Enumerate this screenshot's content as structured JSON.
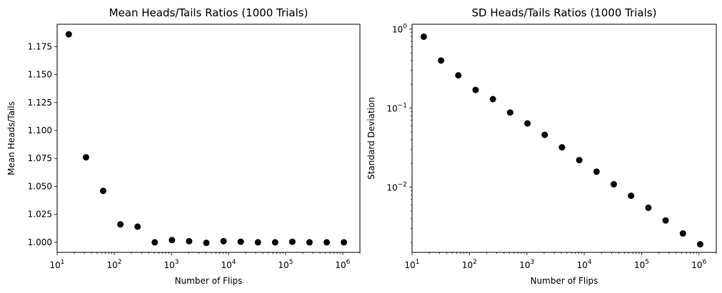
{
  "chart_data": [
    {
      "type": "scatter",
      "title": "Mean Heads/Tails Ratios (1000 Trials)",
      "xlabel": "Number of Flips",
      "ylabel": "Mean Heads/Tails",
      "xscale": "log",
      "yscale": "linear",
      "xlim": [
        10,
        2000000
      ],
      "ylim": [
        0.991,
        1.195
      ],
      "xticks": [
        {
          "value": 10,
          "base": "10",
          "exp": "1"
        },
        {
          "value": 100,
          "base": "10",
          "exp": "2"
        },
        {
          "value": 1000,
          "base": "10",
          "exp": "3"
        },
        {
          "value": 10000,
          "base": "10",
          "exp": "4"
        },
        {
          "value": 100000,
          "base": "10",
          "exp": "5"
        },
        {
          "value": 1000000,
          "base": "10",
          "exp": "6"
        }
      ],
      "yticks": [
        {
          "value": 1.0,
          "label": "1.000"
        },
        {
          "value": 1.025,
          "label": "1.025"
        },
        {
          "value": 1.05,
          "label": "1.050"
        },
        {
          "value": 1.075,
          "label": "1.075"
        },
        {
          "value": 1.1,
          "label": "1.100"
        },
        {
          "value": 1.125,
          "label": "1.125"
        },
        {
          "value": 1.15,
          "label": "1.150"
        },
        {
          "value": 1.175,
          "label": "1.175"
        }
      ],
      "grid": false,
      "marker_color": "#000000",
      "x": [
        16,
        32,
        64,
        128,
        256,
        512,
        1024,
        2048,
        4096,
        8192,
        16384,
        32768,
        65536,
        131072,
        262144,
        524288,
        1048576
      ],
      "y": [
        1.186,
        1.076,
        1.046,
        1.016,
        1.014,
        1.0,
        1.002,
        1.001,
        0.9995,
        1.001,
        1.0005,
        1.0,
        1.0,
        1.0005,
        1.0,
        1.0,
        1.0
      ]
    },
    {
      "type": "scatter",
      "title": "SD Heads/Tails Ratios (1000 Trials)",
      "xlabel": "Number of Flips",
      "ylabel": "Standard Deviation",
      "xscale": "log",
      "yscale": "log",
      "xlim": [
        10,
        2000000
      ],
      "ylim": [
        0.0015,
        1.15
      ],
      "xticks": [
        {
          "value": 10,
          "base": "10",
          "exp": "1"
        },
        {
          "value": 100,
          "base": "10",
          "exp": "2"
        },
        {
          "value": 1000,
          "base": "10",
          "exp": "3"
        },
        {
          "value": 10000,
          "base": "10",
          "exp": "4"
        },
        {
          "value": 100000,
          "base": "10",
          "exp": "5"
        },
        {
          "value": 1000000,
          "base": "10",
          "exp": "6"
        }
      ],
      "yticks": [
        {
          "value": 1,
          "base": "10",
          "exp": "0"
        },
        {
          "value": 0.1,
          "base": "10",
          "exp": "−1"
        },
        {
          "value": 0.01,
          "base": "10",
          "exp": "−2"
        }
      ],
      "grid": false,
      "marker_color": "#000000",
      "x": [
        16,
        32,
        64,
        128,
        256,
        512,
        1024,
        2048,
        4096,
        8192,
        16384,
        32768,
        65536,
        131072,
        262144,
        524288,
        1048576
      ],
      "y": [
        0.8,
        0.4,
        0.26,
        0.17,
        0.13,
        0.088,
        0.064,
        0.046,
        0.032,
        0.022,
        0.0157,
        0.0109,
        0.0078,
        0.0055,
        0.0038,
        0.0026,
        0.0019
      ]
    }
  ]
}
